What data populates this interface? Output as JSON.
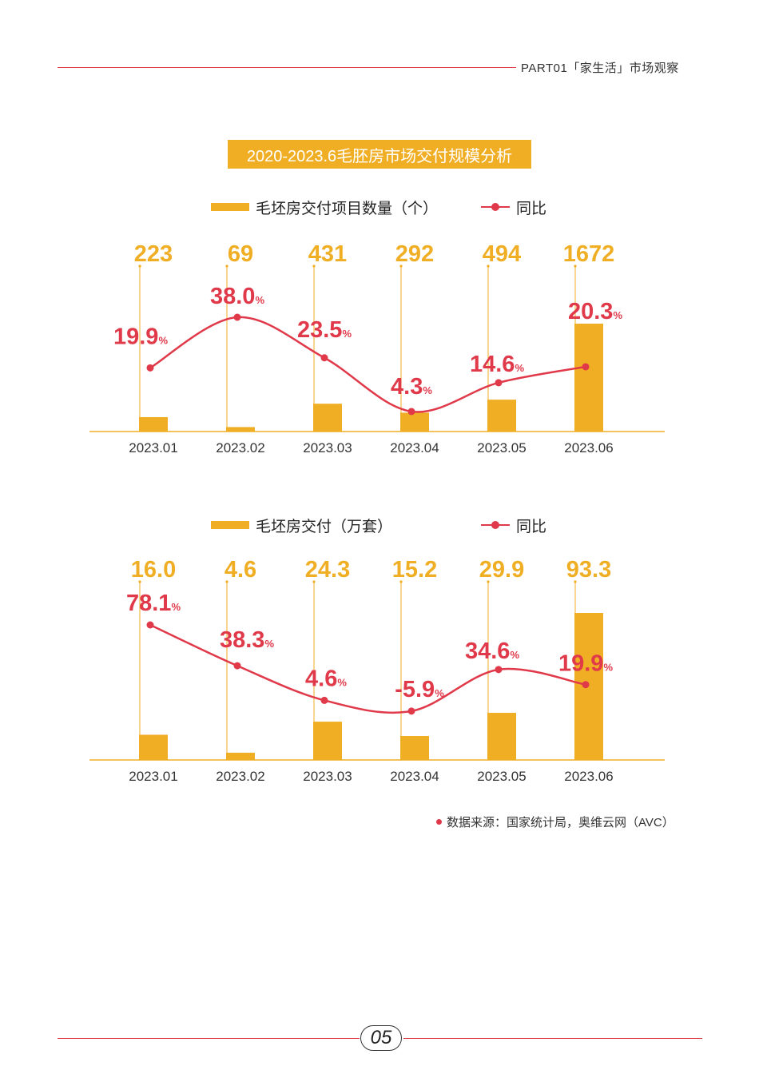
{
  "header": {
    "section": "PART01「家生活」市场观察"
  },
  "title": "2020-2023.6毛胚房市场交付规模分析",
  "chart_data": [
    {
      "type": "bar",
      "categories": [
        "2023.01",
        "2023.02",
        "2023.03",
        "2023.04",
        "2023.05",
        "2023.06"
      ],
      "series": [
        {
          "name": "毛坯房交付项目数量（个）",
          "kind": "bar",
          "values": [
            223,
            69,
            431,
            292,
            494,
            1672
          ],
          "labels": [
            "223",
            "69",
            "431",
            "292",
            "494",
            "1672"
          ]
        },
        {
          "name": "同比",
          "kind": "line",
          "values": [
            19.9,
            38.0,
            23.5,
            4.3,
            14.6,
            20.3
          ],
          "labels": [
            "19.9",
            "38.0",
            "23.5",
            "4.3",
            "14.6",
            "20.3"
          ],
          "unit": "%"
        }
      ],
      "legend_position": "top",
      "colors": {
        "bar": "#f0ae24",
        "line": "#e0394a"
      }
    },
    {
      "type": "bar",
      "categories": [
        "2023.01",
        "2023.02",
        "2023.03",
        "2023.04",
        "2023.05",
        "2023.06"
      ],
      "series": [
        {
          "name": "毛坯房交付（万套）",
          "kind": "bar",
          "values": [
            16.0,
            4.6,
            24.3,
            15.2,
            29.9,
            93.3
          ],
          "labels": [
            "16.0",
            "4.6",
            "24.3",
            "15.2",
            "29.9",
            "93.3"
          ]
        },
        {
          "name": "同比",
          "kind": "line",
          "values": [
            78.1,
            38.3,
            4.6,
            -5.9,
            34.6,
            19.9
          ],
          "labels": [
            "78.1",
            "38.3",
            "4.6",
            "-5.9",
            "34.6",
            "19.9"
          ],
          "unit": "%"
        }
      ],
      "legend_position": "top",
      "colors": {
        "bar": "#f0ae24",
        "line": "#e0394a"
      }
    }
  ],
  "source": "数据来源：国家统计局，奥维云网（AVC）",
  "page_number": "05"
}
